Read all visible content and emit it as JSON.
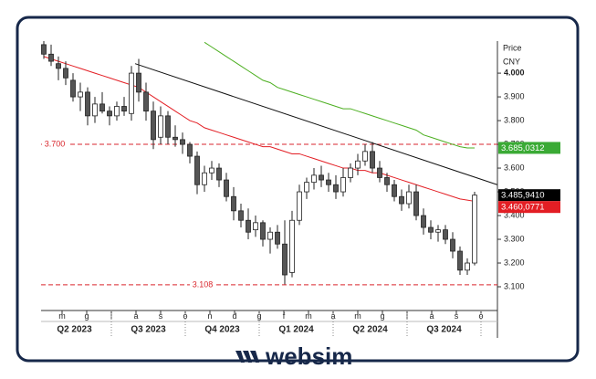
{
  "chart_data": {
    "type": "candlestick",
    "axis_title": "Price",
    "currency": "CNY",
    "ylim": [
      3.0,
      4.135
    ],
    "yticks": [
      {
        "value": 3.1,
        "label": "3.100"
      },
      {
        "value": 3.2,
        "label": "3.200"
      },
      {
        "value": 3.3,
        "label": "3.300"
      },
      {
        "value": 3.4,
        "label": "3.400"
      },
      {
        "value": 3.5,
        "label": "3.500"
      },
      {
        "value": 3.6,
        "label": "3.600"
      },
      {
        "value": 3.7,
        "label": "3.700"
      },
      {
        "value": 3.8,
        "label": "3.800"
      },
      {
        "value": 3.9,
        "label": "3.900"
      },
      {
        "value": 4.0,
        "label": "4.000"
      }
    ],
    "months": [
      "m",
      "g",
      "l",
      "a",
      "s",
      "o",
      "n",
      "d",
      "g",
      "f",
      "m",
      "a",
      "m",
      "g",
      "l",
      "a",
      "s",
      "o"
    ],
    "quarters": [
      "Q2 2023",
      "Q3 2023",
      "Q4 2023",
      "Q1 2024",
      "Q2 2024",
      "Q3 2024"
    ],
    "up_color": "#ffffff",
    "down_color": "#555555",
    "open": [
      4.12,
      4.08,
      4.04,
      4.02,
      3.97,
      3.9,
      3.92,
      3.82,
      3.87,
      3.84,
      3.82,
      3.86,
      3.83,
      4.0,
      3.92,
      3.84,
      3.73,
      3.82,
      3.73,
      3.72,
      3.7,
      3.65,
      3.53,
      3.58,
      3.6,
      3.55,
      3.48,
      3.42,
      3.38,
      3.34,
      3.37,
      3.3,
      3.33,
      3.28,
      3.16,
      3.38,
      3.5,
      3.54,
      3.57,
      3.55,
      3.53,
      3.5,
      3.56,
      3.6,
      3.63,
      3.67,
      3.6,
      3.56,
      3.53,
      3.48,
      3.45,
      3.5,
      3.4,
      3.35,
      3.33,
      3.34,
      3.3,
      3.25,
      3.17,
      3.2
    ],
    "high": [
      4.14,
      4.12,
      4.07,
      4.05,
      4.0,
      3.96,
      3.94,
      3.9,
      3.92,
      3.86,
      3.88,
      3.9,
      4.03,
      4.06,
      3.96,
      3.88,
      3.86,
      3.84,
      3.78,
      3.75,
      3.71,
      3.67,
      3.61,
      3.63,
      3.62,
      3.58,
      3.52,
      3.45,
      3.43,
      3.4,
      3.38,
      3.35,
      3.36,
      3.38,
      3.42,
      3.53,
      3.56,
      3.6,
      3.61,
      3.58,
      3.57,
      3.6,
      3.62,
      3.66,
      3.7,
      3.71,
      3.63,
      3.58,
      3.55,
      3.51,
      3.53,
      3.53,
      3.43,
      3.38,
      3.36,
      3.36,
      3.33,
      3.27,
      3.22,
      3.5
    ],
    "low": [
      4.06,
      4.03,
      3.97,
      3.95,
      3.88,
      3.84,
      3.78,
      3.79,
      3.83,
      3.78,
      3.8,
      3.82,
      3.8,
      3.88,
      3.8,
      3.68,
      3.7,
      3.7,
      3.69,
      3.66,
      3.62,
      3.49,
      3.5,
      3.55,
      3.52,
      3.46,
      3.38,
      3.35,
      3.3,
      3.31,
      3.27,
      3.24,
      3.26,
      3.11,
      3.14,
      3.36,
      3.47,
      3.51,
      3.52,
      3.5,
      3.47,
      3.48,
      3.54,
      3.57,
      3.61,
      3.58,
      3.54,
      3.5,
      3.46,
      3.42,
      3.43,
      3.38,
      3.32,
      3.3,
      3.29,
      3.28,
      3.22,
      3.15,
      3.15,
      3.19
    ],
    "close": [
      4.08,
      4.05,
      4.02,
      3.98,
      3.9,
      3.92,
      3.82,
      3.87,
      3.84,
      3.82,
      3.86,
      3.84,
      4.0,
      3.92,
      3.84,
      3.72,
      3.82,
      3.73,
      3.72,
      3.7,
      3.65,
      3.53,
      3.58,
      3.6,
      3.55,
      3.48,
      3.42,
      3.38,
      3.33,
      3.37,
      3.3,
      3.33,
      3.28,
      3.15,
      3.38,
      3.5,
      3.54,
      3.57,
      3.55,
      3.53,
      3.5,
      3.56,
      3.6,
      3.63,
      3.67,
      3.6,
      3.56,
      3.53,
      3.48,
      3.45,
      3.5,
      3.4,
      3.35,
      3.33,
      3.34,
      3.3,
      3.25,
      3.17,
      3.2,
      3.486
    ],
    "series": [
      {
        "color": "#e31e24",
        "values": [
          4.07,
          4.06,
          4.05,
          4.04,
          4.03,
          4.02,
          4.01,
          4.0,
          3.99,
          3.98,
          3.97,
          3.96,
          3.95,
          3.94,
          3.92,
          3.9,
          3.88,
          3.86,
          3.84,
          3.82,
          3.8,
          3.79,
          3.77,
          3.76,
          3.75,
          3.74,
          3.73,
          3.72,
          3.71,
          3.7,
          3.69,
          3.69,
          3.68,
          3.67,
          3.66,
          3.66,
          3.65,
          3.64,
          3.63,
          3.62,
          3.61,
          3.6,
          3.6,
          3.59,
          3.59,
          3.58,
          3.58,
          3.57,
          3.56,
          3.55,
          3.54,
          3.53,
          3.52,
          3.51,
          3.5,
          3.49,
          3.48,
          3.47,
          3.465,
          3.46
        ]
      },
      {
        "color": "#4caf20",
        "values": [
          null,
          null,
          null,
          null,
          null,
          null,
          null,
          null,
          null,
          null,
          null,
          null,
          null,
          null,
          null,
          null,
          null,
          null,
          null,
          null,
          null,
          null,
          4.13,
          4.11,
          4.09,
          4.07,
          4.05,
          4.03,
          4.01,
          3.99,
          3.97,
          3.96,
          3.94,
          3.93,
          3.92,
          3.91,
          3.9,
          3.89,
          3.88,
          3.87,
          3.86,
          3.85,
          3.85,
          3.84,
          3.83,
          3.82,
          3.81,
          3.8,
          3.79,
          3.78,
          3.77,
          3.76,
          3.74,
          3.73,
          3.72,
          3.71,
          3.7,
          3.69,
          3.685,
          3.685
        ]
      }
    ],
    "trendline": {
      "color": "#111111",
      "x": [
        12.5,
        62.1
      ],
      "values": [
        4.04,
        3.53
      ]
    },
    "levels": [
      {
        "value": 3.7,
        "label": "3.700",
        "color": "#d9262c"
      },
      {
        "value": 3.108,
        "label": "3.108",
        "color": "#d9262c"
      }
    ],
    "price_tags": [
      {
        "value": 3.6850312,
        "label": "3.685,0312",
        "color": "#3aaa35"
      },
      {
        "value": 3.485941,
        "label": "3.485,9410",
        "color": "#000000"
      },
      {
        "value": 3.4600771,
        "label": "3.460,0771",
        "color": "#e31e24"
      }
    ]
  },
  "brand": "websim"
}
